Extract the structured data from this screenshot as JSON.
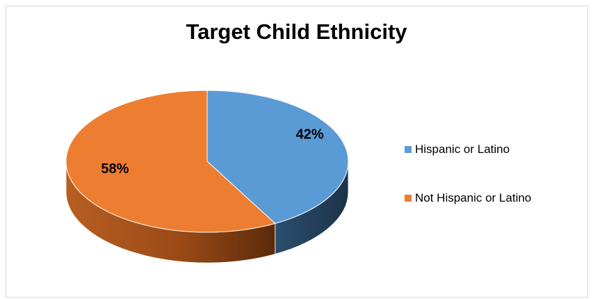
{
  "chart_data": {
    "type": "pie",
    "title": "Target Child Ethnicity",
    "style": "3d",
    "legend_position": "right",
    "slices": [
      {
        "name": "Hispanic or Latino",
        "value": 42,
        "label": "42%",
        "color": "#5b9bd5",
        "side_color": "#223f58"
      },
      {
        "name": "Not Hispanic or Latino",
        "value": 58,
        "label": "58%",
        "color": "#ed7d31",
        "side_color": "#a9541a"
      }
    ]
  }
}
